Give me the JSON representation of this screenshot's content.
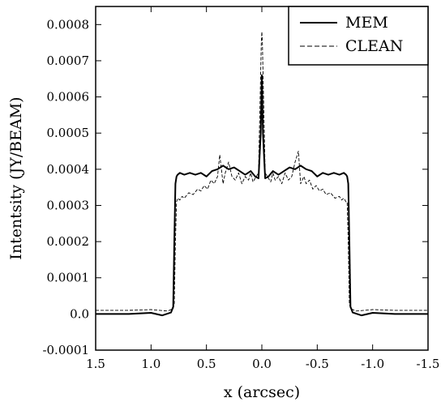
{
  "chart_data": {
    "type": "line",
    "title": "",
    "xlabel": "x (arcsec)",
    "ylabel": "Intentsity (JY/BEAM)",
    "xlim": [
      1.5,
      -1.5
    ],
    "ylim": [
      -0.0001,
      0.00085
    ],
    "x_reversed": true,
    "grid": false,
    "legend_position": "top-right",
    "xticks": [
      1.5,
      1.0,
      0.5,
      0.0,
      -0.5,
      -1.0,
      -1.5
    ],
    "xtick_labels": [
      "1.5",
      "1.0",
      "0.5",
      "0.0",
      "-0.5",
      "-1.0",
      "-1.5"
    ],
    "yticks": [
      -0.0001,
      0.0,
      0.0001,
      0.0002,
      0.0003,
      0.0004,
      0.0005,
      0.0006,
      0.0007,
      0.0008
    ],
    "ytick_labels": [
      "-0.0001",
      "0.0",
      "0.0001",
      "0.0002",
      "0.0003",
      "0.0004",
      "0.0005",
      "0.0006",
      "0.0007",
      "0.0008"
    ],
    "series": [
      {
        "name": "MEM",
        "style": "solid",
        "color": "#000000",
        "x": [
          1.5,
          1.2,
          1.0,
          0.9,
          0.82,
          0.8,
          0.79,
          0.78,
          0.77,
          0.76,
          0.74,
          0.7,
          0.65,
          0.6,
          0.55,
          0.5,
          0.45,
          0.4,
          0.35,
          0.3,
          0.25,
          0.2,
          0.15,
          0.1,
          0.06,
          0.03,
          0.01,
          0.0,
          -0.01,
          -0.03,
          -0.06,
          -0.1,
          -0.15,
          -0.2,
          -0.25,
          -0.3,
          -0.35,
          -0.4,
          -0.45,
          -0.5,
          -0.55,
          -0.6,
          -0.65,
          -0.7,
          -0.74,
          -0.76,
          -0.77,
          -0.78,
          -0.79,
          -0.8,
          -0.82,
          -0.9,
          -1.0,
          -1.2,
          -1.5
        ],
        "y": [
          0.0,
          0.0,
          3e-06,
          -4e-06,
          4e-06,
          2e-05,
          0.0002,
          0.00036,
          0.00038,
          0.000385,
          0.00039,
          0.000385,
          0.00039,
          0.000385,
          0.00039,
          0.00038,
          0.000395,
          0.0004,
          0.00041,
          0.0004,
          0.000405,
          0.000395,
          0.000385,
          0.000395,
          0.00038,
          0.000375,
          0.0005,
          0.00066,
          0.0005,
          0.000375,
          0.00038,
          0.000395,
          0.000385,
          0.000395,
          0.000405,
          0.0004,
          0.00041,
          0.0004,
          0.000395,
          0.00038,
          0.00039,
          0.000385,
          0.00039,
          0.000385,
          0.00039,
          0.000385,
          0.00038,
          0.00036,
          0.0002,
          2e-05,
          4e-06,
          -4e-06,
          3e-06,
          0.0,
          0.0
        ]
      },
      {
        "name": "CLEAN",
        "style": "dashed",
        "color": "#000000",
        "x": [
          1.5,
          1.2,
          1.0,
          0.85,
          0.8,
          0.79,
          0.78,
          0.77,
          0.76,
          0.74,
          0.72,
          0.7,
          0.66,
          0.62,
          0.58,
          0.55,
          0.52,
          0.49,
          0.46,
          0.43,
          0.4,
          0.38,
          0.35,
          0.33,
          0.3,
          0.27,
          0.24,
          0.21,
          0.18,
          0.15,
          0.12,
          0.1,
          0.08,
          0.05,
          0.03,
          0.015,
          0.005,
          0.0,
          -0.005,
          -0.015,
          -0.03,
          -0.05,
          -0.08,
          -0.1,
          -0.12,
          -0.15,
          -0.18,
          -0.21,
          -0.24,
          -0.27,
          -0.3,
          -0.33,
          -0.35,
          -0.38,
          -0.4,
          -0.43,
          -0.46,
          -0.49,
          -0.52,
          -0.55,
          -0.58,
          -0.62,
          -0.66,
          -0.7,
          -0.72,
          -0.74,
          -0.76,
          -0.77,
          -0.78,
          -0.79,
          -0.8,
          -0.85,
          -1.0,
          -1.2,
          -1.5
        ],
        "y": [
          1e-05,
          1e-05,
          1.2e-05,
          8e-06,
          1.5e-05,
          3e-05,
          0.0002,
          0.00031,
          0.00032,
          0.000315,
          0.000325,
          0.00032,
          0.000335,
          0.00033,
          0.000345,
          0.00034,
          0.000355,
          0.000345,
          0.00037,
          0.00036,
          0.00038,
          0.00044,
          0.00036,
          0.00039,
          0.00042,
          0.00038,
          0.00037,
          0.00039,
          0.00036,
          0.00038,
          0.00037,
          0.00039,
          0.000365,
          0.00038,
          0.00039,
          0.0006,
          0.00075,
          0.00078,
          0.00075,
          0.0006,
          0.00039,
          0.00038,
          0.000365,
          0.00039,
          0.00037,
          0.00038,
          0.00036,
          0.00039,
          0.00037,
          0.00038,
          0.00042,
          0.00045,
          0.00036,
          0.00038,
          0.00036,
          0.00037,
          0.000345,
          0.000355,
          0.00034,
          0.000345,
          0.00033,
          0.000335,
          0.00032,
          0.000325,
          0.000315,
          0.00032,
          0.00031,
          0.00031,
          0.0002,
          3e-05,
          1.5e-05,
          8e-06,
          1.2e-05,
          1e-05,
          1e-05
        ]
      }
    ]
  }
}
